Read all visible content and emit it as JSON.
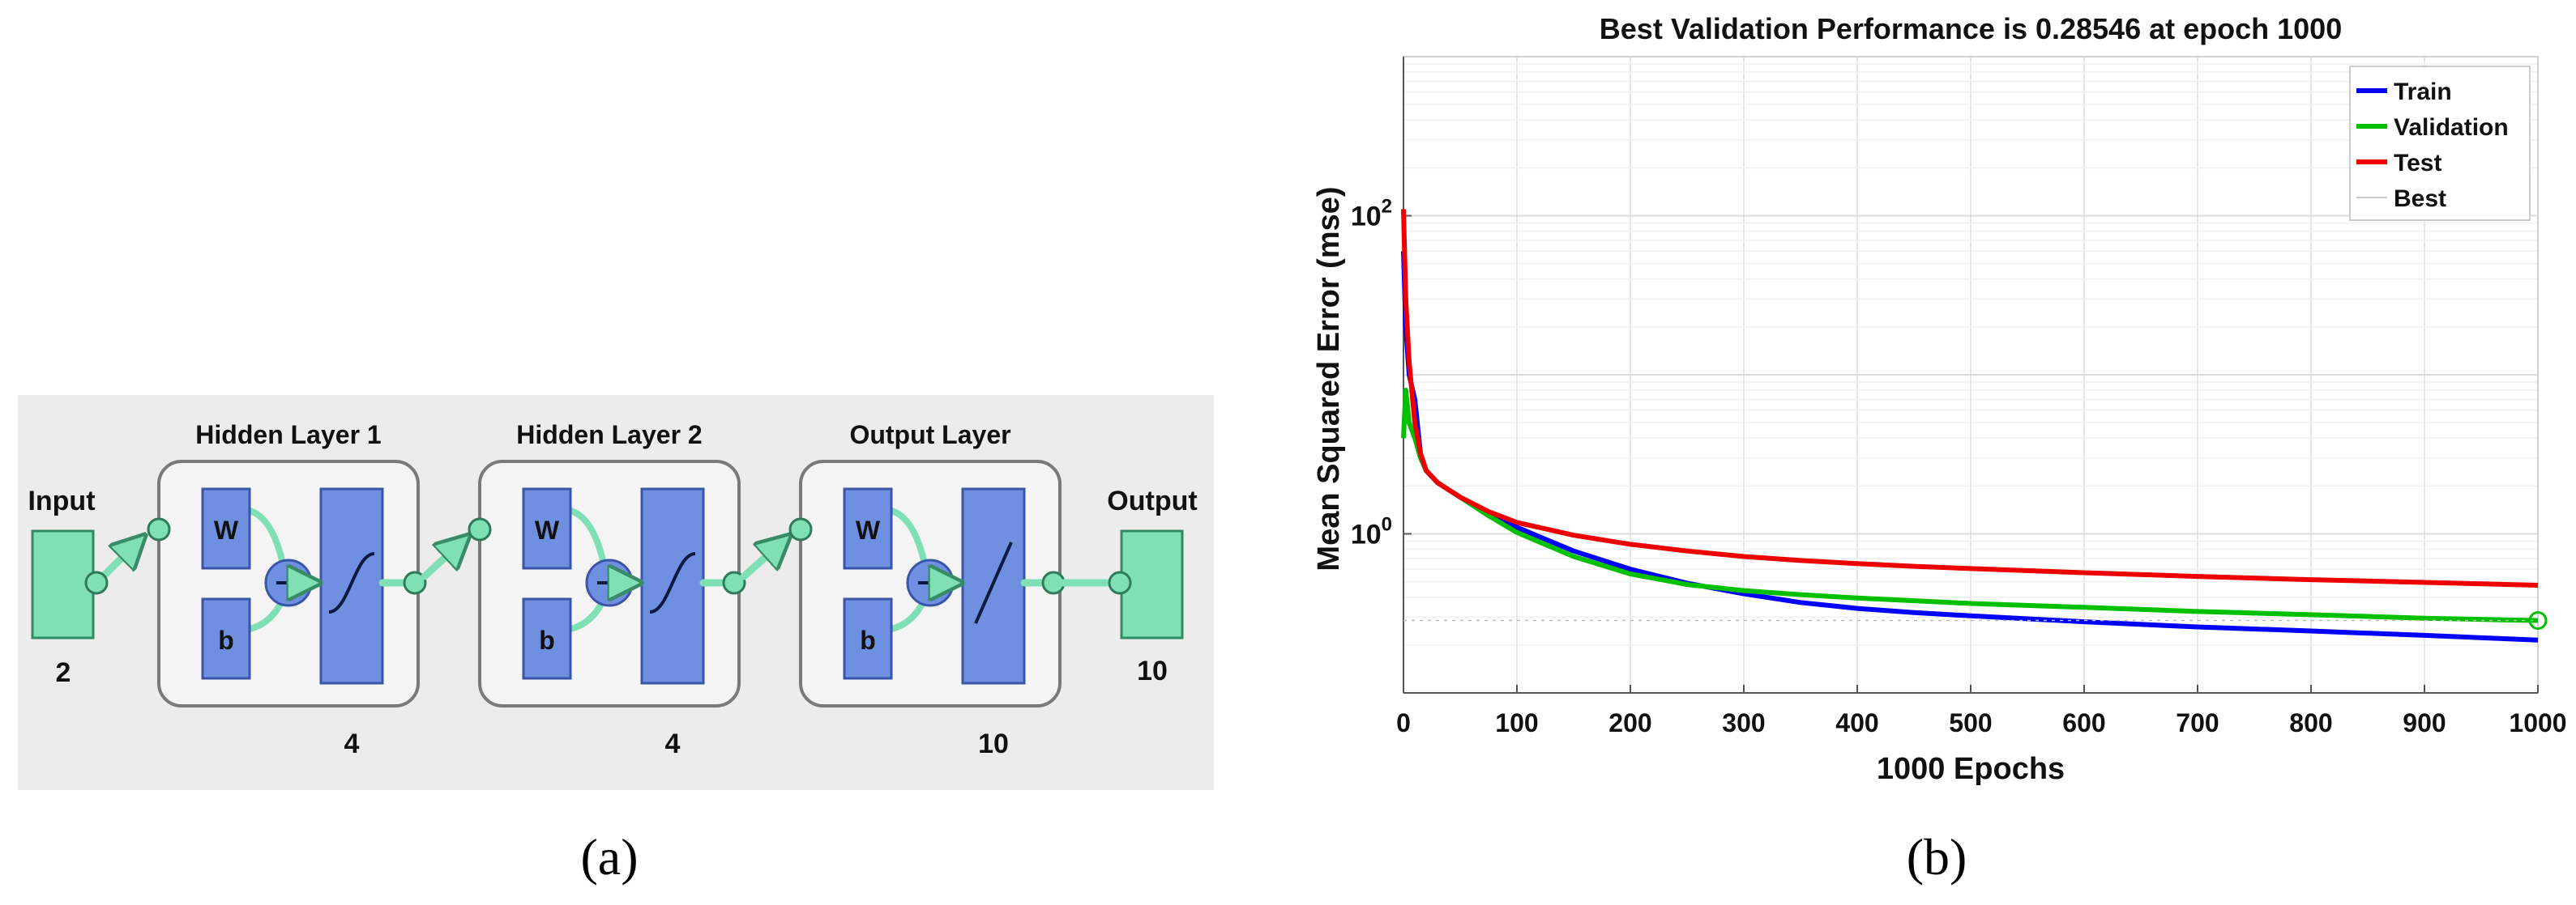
{
  "panel_a": {
    "input_label": "Input",
    "input_size": "2",
    "output_label": "Output",
    "output_size": "10",
    "layers": [
      {
        "title": "Hidden Layer 1",
        "w": "W",
        "b": "b",
        "size": "4",
        "activation": "sigmoid"
      },
      {
        "title": "Hidden Layer 2",
        "w": "W",
        "b": "b",
        "size": "4",
        "activation": "sigmoid"
      },
      {
        "title": "Output Layer",
        "w": "W",
        "b": "b",
        "size": "10",
        "activation": "linear"
      }
    ],
    "caption": "(a)",
    "colors": {
      "block": "#6f8fe0",
      "node": "#7fe0b5",
      "background": "#ececec"
    }
  },
  "panel_b": {
    "caption": "(b)",
    "chart_data": {
      "type": "line",
      "title": "Best Validation Performance is 0.28546 at epoch 1000",
      "xlabel": "1000 Epochs",
      "ylabel": "Mean Squared Error  (mse)",
      "yscale": "log",
      "xlim": [
        0,
        1000
      ],
      "ylim": [
        0.1,
        1000
      ],
      "xticks": [
        0,
        100,
        200,
        300,
        400,
        500,
        600,
        700,
        800,
        900,
        1000
      ],
      "yticks": [
        {
          "base": "10",
          "exp": "0",
          "value": 1
        },
        {
          "base": "10",
          "exp": "2",
          "value": 100
        }
      ],
      "legend": [
        "Train",
        "Validation",
        "Test",
        "Best"
      ],
      "legend_position": "top-right",
      "grid": true,
      "best": {
        "epoch": 1000,
        "value": 0.28546
      },
      "series": [
        {
          "name": "Train",
          "color": "#0000ff",
          "x": [
            0,
            2,
            5,
            10,
            15,
            20,
            30,
            50,
            75,
            100,
            150,
            200,
            250,
            300,
            350,
            400,
            450,
            500,
            600,
            700,
            800,
            900,
            1000
          ],
          "y": [
            60,
            20,
            10,
            7,
            3.2,
            2.5,
            2.1,
            1.7,
            1.35,
            1.1,
            0.78,
            0.6,
            0.49,
            0.42,
            0.37,
            0.34,
            0.32,
            0.305,
            0.28,
            0.26,
            0.245,
            0.23,
            0.215
          ]
        },
        {
          "name": "Validation",
          "color": "#00c000",
          "x": [
            0,
            2,
            5,
            10,
            15,
            20,
            30,
            50,
            75,
            100,
            150,
            200,
            250,
            300,
            350,
            400,
            450,
            500,
            600,
            700,
            800,
            900,
            1000
          ],
          "y": [
            4,
            8,
            5,
            4,
            3,
            2.5,
            2.1,
            1.7,
            1.3,
            1.02,
            0.72,
            0.56,
            0.48,
            0.44,
            0.415,
            0.395,
            0.38,
            0.365,
            0.345,
            0.325,
            0.31,
            0.295,
            0.285
          ]
        },
        {
          "name": "Test",
          "color": "#ee0000",
          "x": [
            0,
            2,
            5,
            10,
            15,
            20,
            30,
            50,
            75,
            100,
            150,
            200,
            250,
            300,
            350,
            400,
            450,
            500,
            600,
            700,
            800,
            900,
            1000
          ],
          "y": [
            110,
            30,
            12,
            5,
            3.2,
            2.5,
            2.1,
            1.7,
            1.38,
            1.18,
            0.98,
            0.86,
            0.78,
            0.72,
            0.68,
            0.65,
            0.625,
            0.605,
            0.57,
            0.54,
            0.515,
            0.495,
            0.475
          ]
        }
      ]
    }
  }
}
